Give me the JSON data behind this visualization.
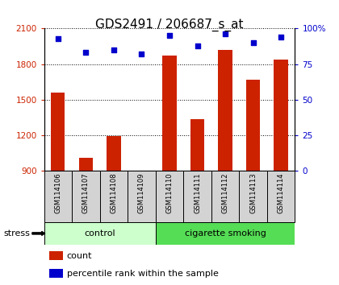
{
  "title": "GDS2491 / 206687_s_at",
  "samples": [
    "GSM114106",
    "GSM114107",
    "GSM114108",
    "GSM114109",
    "GSM114110",
    "GSM114111",
    "GSM114112",
    "GSM114113",
    "GSM114114"
  ],
  "counts": [
    1560,
    1010,
    1195,
    870,
    1870,
    1340,
    1920,
    1670,
    1840
  ],
  "percentiles": [
    93,
    83,
    85,
    82,
    95,
    88,
    96,
    90,
    94
  ],
  "ylim_left": [
    900,
    2100
  ],
  "ylim_right": [
    0,
    100
  ],
  "yticks_left": [
    900,
    1200,
    1500,
    1800,
    2100
  ],
  "yticks_right": [
    0,
    25,
    50,
    75,
    100
  ],
  "bar_color": "#cc2200",
  "dot_color": "#0000cc",
  "bar_width": 0.5,
  "label_bg": "#d3d3d3",
  "control_color": "#ccffcc",
  "smoking_color": "#55dd55",
  "title_fontsize": 11,
  "tick_fontsize": 7.5,
  "stress_label": "stress"
}
